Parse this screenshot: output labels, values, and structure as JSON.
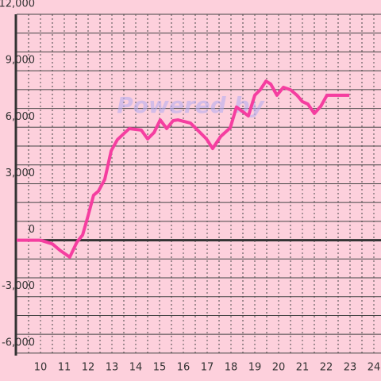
{
  "chart_data": {
    "type": "line",
    "watermark": "Powered by",
    "x": [
      9,
      10,
      10.5,
      10.83,
      11.23,
      11.53,
      11.77,
      12.0,
      12.23,
      12.43,
      12.7,
      12.97,
      13.23,
      13.73,
      14.23,
      14.5,
      14.77,
      15.03,
      15.3,
      15.57,
      15.77,
      16.3,
      16.7,
      16.97,
      17.23,
      17.57,
      17.97,
      18.23,
      18.47,
      18.73,
      19.0,
      19.23,
      19.47,
      19.67,
      19.93,
      20.2,
      20.5,
      20.77,
      21.0,
      21.23,
      21.5,
      21.77,
      22.03,
      22.97
    ],
    "series": [
      {
        "color": "#f53ea0",
        "values": [
          0,
          0,
          -200,
          -550,
          -900,
          -100,
          280,
          1300,
          2390,
          2600,
          3230,
          4750,
          5340,
          5930,
          5850,
          5380,
          5720,
          6390,
          5930,
          6350,
          6390,
          6220,
          5720,
          5380,
          4870,
          5510,
          5970,
          7070,
          6850,
          6600,
          7700,
          7990,
          8450,
          8290,
          7700,
          8120,
          7990,
          7700,
          7360,
          7230,
          6730,
          7110,
          7700,
          7700
        ]
      }
    ],
    "xlim": [
      9,
      24.3
    ],
    "ylim": [
      -6300,
      12000
    ],
    "xticks": [
      10,
      11,
      12,
      13,
      14,
      15,
      16,
      17,
      18,
      19,
      20,
      21,
      22,
      23,
      24
    ],
    "x_minor_ticks": [
      9.5,
      10.5,
      11.5,
      12.5,
      13.5,
      14.5,
      15.5,
      16.5,
      17.5,
      18.5,
      19.5,
      20.5,
      21.5,
      22.5,
      23.5
    ],
    "yticks": [
      {
        "value": -6000,
        "label": "-6,000"
      },
      {
        "value": -3000,
        "label": "-3,000"
      },
      0,
      {
        "value": 3000,
        "label": "3,000"
      },
      {
        "value": 6000,
        "label": "6,000"
      },
      {
        "value": 9000,
        "label": "9,000"
      },
      {
        "value": 12000,
        "label": "12,000"
      }
    ],
    "y_minor_ticks": [
      -5000,
      -4000,
      -2000,
      -1000,
      1000,
      2000,
      4000,
      5000,
      7000,
      8000,
      10000,
      11000
    ],
    "grid": true,
    "background": "#fdd0dc"
  }
}
